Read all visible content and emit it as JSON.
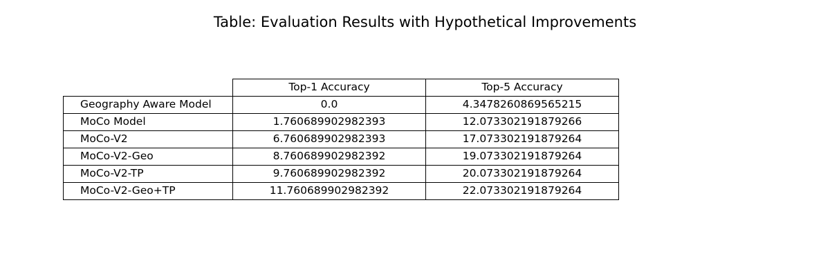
{
  "chart_data": {
    "type": "table",
    "title": "Table: Evaluation Results with Hypothetical Improvements",
    "columns": [
      "Top-1 Accuracy",
      "Top-5 Accuracy"
    ],
    "rows": [
      {
        "label": "Geography Aware Model",
        "values": [
          "0.0",
          "4.3478260869565215"
        ]
      },
      {
        "label": "MoCo Model",
        "values": [
          "1.760689902982393",
          "12.073302191879266"
        ]
      },
      {
        "label": "MoCo-V2",
        "values": [
          "6.760689902982393",
          "17.073302191879264"
        ]
      },
      {
        "label": "MoCo-V2-Geo",
        "values": [
          "8.760689902982392",
          "19.073302191879264"
        ]
      },
      {
        "label": "MoCo-V2-TP",
        "values": [
          "9.760689902982392",
          "20.073302191879264"
        ]
      },
      {
        "label": "MoCo-V2-Geo+TP",
        "values": [
          "11.760689902982392",
          "22.073302191879264"
        ]
      }
    ]
  }
}
